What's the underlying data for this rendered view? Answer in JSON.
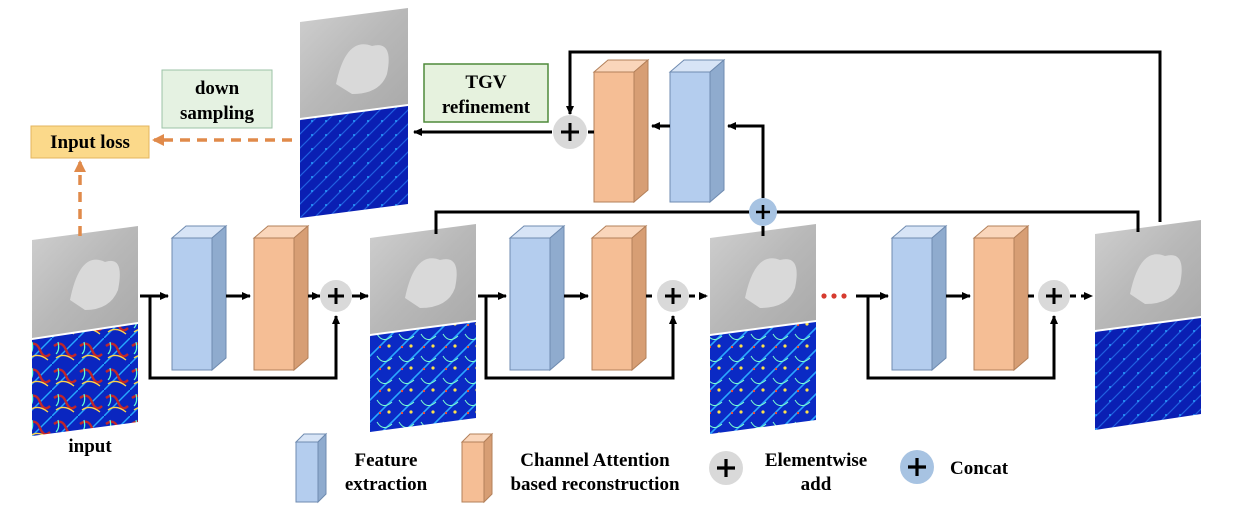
{
  "labels": {
    "input": "input",
    "input_loss": "Input loss",
    "down_sampling_1": "down",
    "down_sampling_2": "sampling",
    "tgv_1": "TGV",
    "tgv_2": "refinement"
  },
  "legend": {
    "feature_1": "Feature",
    "feature_2": "extraction",
    "channel_1": "Channel Attention",
    "channel_2": "based reconstruction",
    "add_1": "Elementwise",
    "add_2": "add",
    "concat": "Concat"
  },
  "colors": {
    "feature_block": "#b4cdee",
    "reconstruction_block": "#f5be95",
    "input_loss_box": "#fbd98a",
    "down_sampling_box": "#e5f2e2",
    "tgv_box": "#e6f2de",
    "loss_arrow": "#e08a4a",
    "elementwise_add": "#d9d9d9",
    "concat": "#a7c3e2"
  },
  "icons": {
    "add": "plus-circle-icon",
    "concat": "plus-circle-icon"
  }
}
